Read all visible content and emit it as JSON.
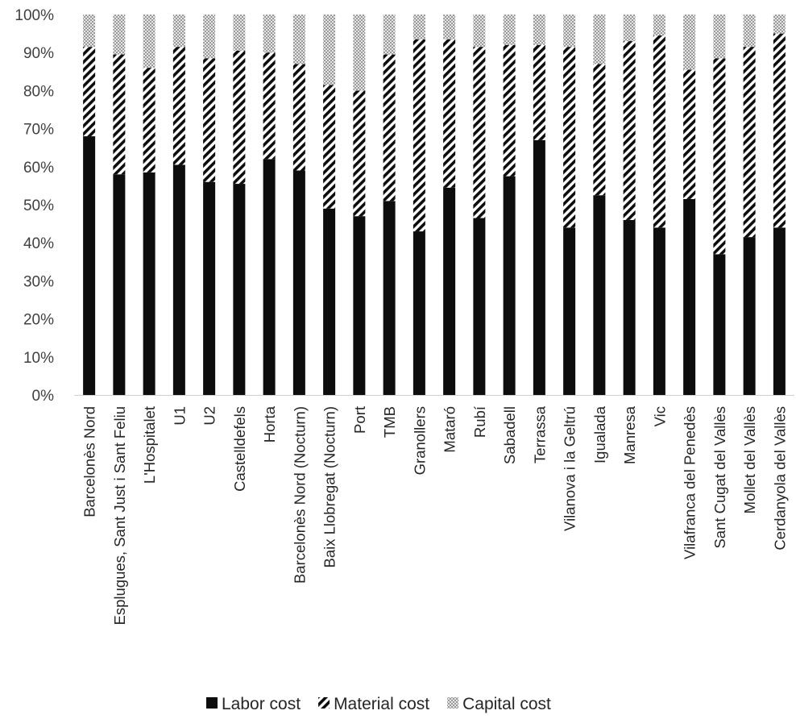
{
  "chart_data": {
    "type": "bar",
    "stacked": true,
    "normalized": true,
    "categories": [
      "Barcelonès Nord",
      "Esplugues, Sant Just i Sant Feliu",
      "L'Hospitalet",
      "U1",
      "U2",
      "Castelldefels",
      "Horta",
      "Barcelonès Nord (Nocturn)",
      "Baix Llobregat (Nocturn)",
      "Port",
      "TMB",
      "Granollers",
      "Mataró",
      "Rubí",
      "Sabadell",
      "Terrassa",
      "Vilanova i la Geltrú",
      "Igualada",
      "Manresa",
      "Vic",
      "Vilafranca del Penedès",
      "Sant Cugat del Vallès",
      "Mollet del Vallès",
      "Cerdanyola del Vallès"
    ],
    "series": [
      {
        "name": "Labor cost",
        "pattern": "solid",
        "color": "#0d0d0d",
        "values": [
          68,
          58,
          58.5,
          60.5,
          56,
          55.5,
          62,
          59,
          49,
          47,
          51,
          43,
          54.5,
          46.5,
          57.5,
          67,
          44,
          52.5,
          46,
          44,
          51.5,
          37,
          41.5,
          44
        ]
      },
      {
        "name": "Material cost",
        "pattern": "diagonal-stripes",
        "color": "#0d0d0d",
        "values": [
          23.5,
          31.5,
          27.5,
          31,
          32.5,
          35,
          28,
          28,
          32.5,
          33,
          38.5,
          50.5,
          39,
          45,
          34.5,
          25,
          47.5,
          34.5,
          47,
          50.5,
          34,
          51.5,
          50,
          51
        ]
      },
      {
        "name": "Capital cost",
        "pattern": "checker",
        "color": "#9a9a9a",
        "values": [
          8.5,
          10.5,
          14,
          8.5,
          11.5,
          9.5,
          10,
          13,
          18.5,
          20,
          10.5,
          6.5,
          6.5,
          8.5,
          8,
          8,
          8.5,
          13,
          7,
          5.5,
          14.5,
          11.5,
          8.5,
          5
        ]
      }
    ],
    "y_ticks": [
      "0%",
      "10%",
      "20%",
      "30%",
      "40%",
      "50%",
      "60%",
      "70%",
      "80%",
      "90%",
      "100%"
    ],
    "ylim": [
      0,
      100
    ],
    "grid": false,
    "legend_position": "bottom",
    "title": "",
    "xlabel": "",
    "ylabel": ""
  }
}
